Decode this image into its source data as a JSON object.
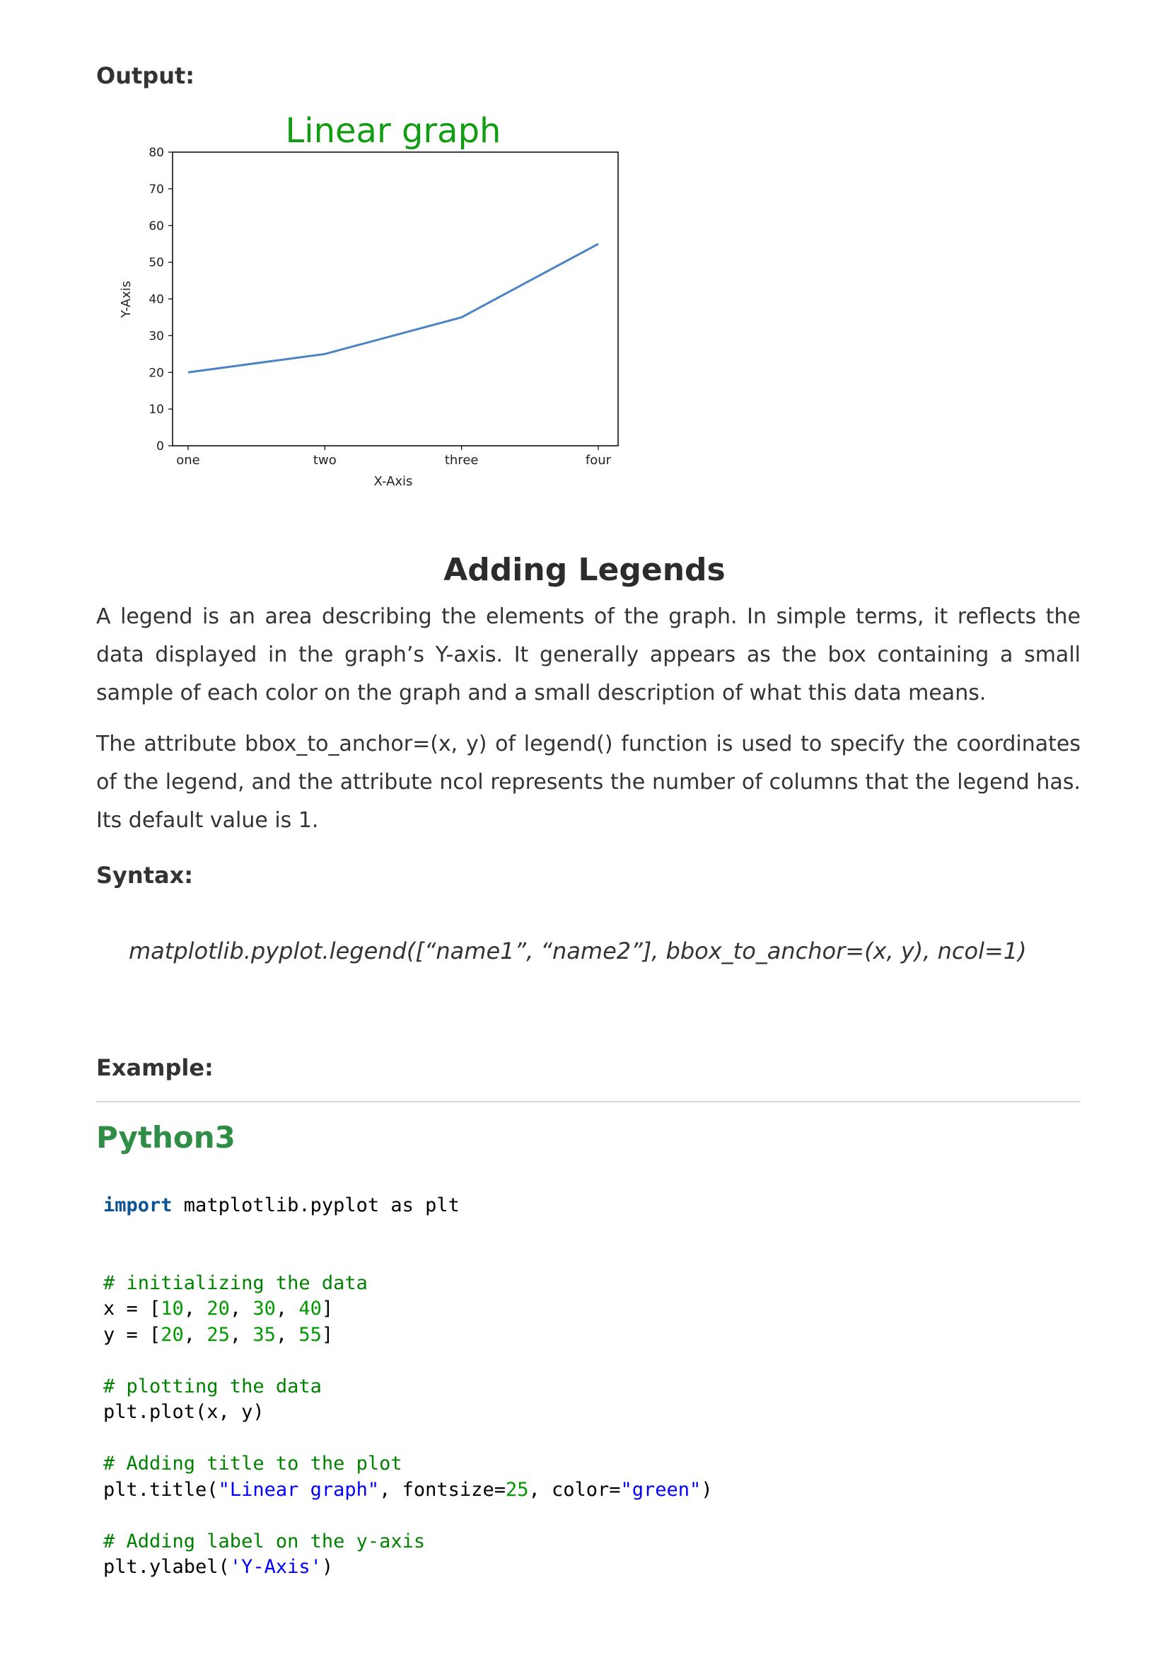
{
  "output_label": "Output:",
  "chart_data": {
    "type": "line",
    "title": "Linear graph",
    "title_color": "#129c12",
    "xlabel": "X-Axis",
    "ylabel": "Y-Axis",
    "categories": [
      "one",
      "two",
      "three",
      "four"
    ],
    "values": [
      20,
      25,
      35,
      55
    ],
    "ylim": [
      0,
      80
    ],
    "yticks": [
      "0",
      "10",
      "20",
      "30",
      "40",
      "50",
      "60",
      "70",
      "80"
    ],
    "line_color": "#4c83c3",
    "grid": false
  },
  "section": {
    "title": "Adding Legends",
    "para1": "A legend is an area describing the elements of the graph. In simple terms, it reflects the data displayed in the graph’s Y-axis. It generally appears as the box containing a small sample of each color on the graph and a small description of what this data means.",
    "para2": "The attribute bbox_to_anchor=(x, y) of legend() function is used to specify the coordinates of the legend, and the attribute ncol represents the number of columns that the legend has. Its default value is 1.",
    "syntax_label": "Syntax:",
    "syntax": "matplotlib.pyplot.legend([“name1”, “name2”], bbox_to_anchor=(x, y), ncol=1)",
    "example_label": "Example:",
    "language": "Python3"
  },
  "code": {
    "l1_kw": "import",
    "l1_rest": " matplotlib.pyplot as plt",
    "l2_comment": "# initializing the data",
    "l3_pre": "x = [",
    "l3_v1": "10",
    "l3_v2": "20",
    "l3_v3": "30",
    "l3_v4": "40",
    "l4_pre": "y = [",
    "l4_v1": "20",
    "l4_v2": "25",
    "l4_v3": "35",
    "l4_v4": "55",
    "l5_comment": "# plotting the data",
    "l6": "plt.plot(x, y)",
    "l7_comment": "# Adding title to the plot",
    "l8_pre": "plt.title(",
    "l8_str1": "\"Linear graph\"",
    "l8_mid1": ", fontsize=",
    "l8_num": "25",
    "l8_mid2": ", color=",
    "l8_str2": "\"green\"",
    "l8_end": ")",
    "l9_comment": "# Adding label on the y-axis",
    "l10_pre": "plt.ylabel(",
    "l10_str": "'Y-Axis'",
    "l10_end": ")"
  }
}
